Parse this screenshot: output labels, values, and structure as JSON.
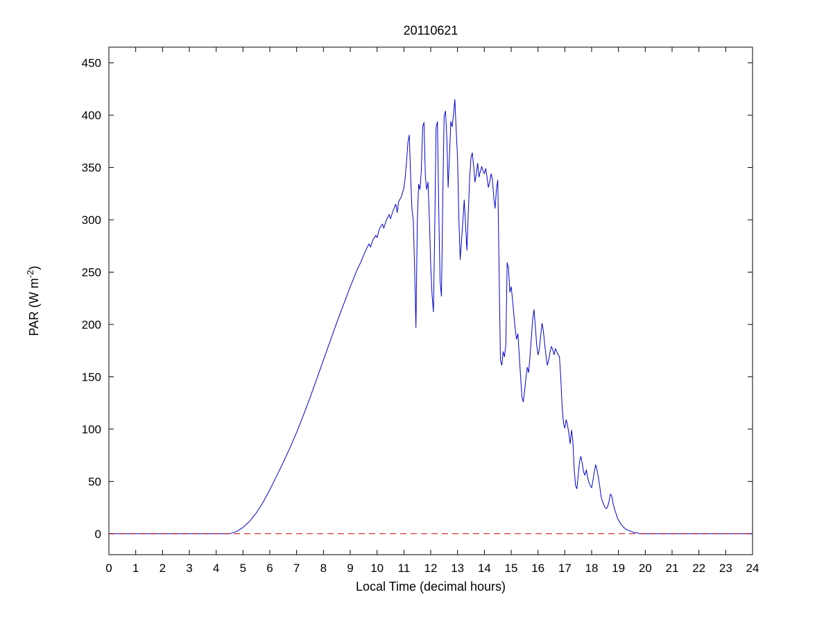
{
  "figure": {
    "background": "#ffffff",
    "axes_color": "#000000"
  },
  "chart_data": {
    "type": "line",
    "title": "20110621",
    "xlabel": "Local Time (decimal hours)",
    "ylabel": "PAR (W m^-2)",
    "ylabel_parts": {
      "main": "PAR (W m",
      "sup": "-2",
      "end": ")"
    },
    "xlim": [
      0,
      24
    ],
    "ylim": [
      -20,
      465
    ],
    "xticks": [
      0,
      1,
      2,
      3,
      4,
      5,
      6,
      7,
      8,
      9,
      10,
      11,
      12,
      13,
      14,
      15,
      16,
      17,
      18,
      19,
      20,
      21,
      22,
      23,
      24
    ],
    "yticks": [
      0,
      50,
      100,
      150,
      200,
      250,
      300,
      350,
      400,
      450
    ],
    "grid": false,
    "legend": "none",
    "series": [
      {
        "name": "par",
        "label": "PAR",
        "color": "#0000cc",
        "style": "solid",
        "points": [
          [
            0,
            0
          ],
          [
            0.5,
            0
          ],
          [
            1,
            0
          ],
          [
            1.5,
            0
          ],
          [
            2,
            0
          ],
          [
            2.5,
            0
          ],
          [
            3,
            0
          ],
          [
            3.5,
            0
          ],
          [
            4,
            0
          ],
          [
            4.3,
            0
          ],
          [
            4.5,
            0
          ],
          [
            4.75,
            2
          ],
          [
            5,
            6
          ],
          [
            5.25,
            12
          ],
          [
            5.5,
            20
          ],
          [
            5.75,
            30
          ],
          [
            6,
            42
          ],
          [
            6.25,
            55
          ],
          [
            6.5,
            68
          ],
          [
            6.75,
            82
          ],
          [
            7,
            97
          ],
          [
            7.25,
            113
          ],
          [
            7.5,
            130
          ],
          [
            7.75,
            148
          ],
          [
            8,
            166
          ],
          [
            8.25,
            184
          ],
          [
            8.5,
            202
          ],
          [
            8.75,
            219
          ],
          [
            9,
            236
          ],
          [
            9.25,
            252
          ],
          [
            9.4,
            260
          ],
          [
            9.5,
            266
          ],
          [
            9.6,
            272
          ],
          [
            9.7,
            277
          ],
          [
            9.75,
            274
          ],
          [
            9.85,
            281
          ],
          [
            9.95,
            285
          ],
          [
            10,
            283
          ],
          [
            10.05,
            288
          ],
          [
            10.1,
            292
          ],
          [
            10.2,
            296
          ],
          [
            10.25,
            292
          ],
          [
            10.35,
            300
          ],
          [
            10.45,
            305
          ],
          [
            10.5,
            301
          ],
          [
            10.6,
            309
          ],
          [
            10.7,
            315
          ],
          [
            10.75,
            307
          ],
          [
            10.8,
            317
          ],
          [
            10.9,
            322
          ],
          [
            11,
            330
          ],
          [
            11.05,
            341
          ],
          [
            11.1,
            356
          ],
          [
            11.15,
            374
          ],
          [
            11.2,
            381
          ],
          [
            11.25,
            342
          ],
          [
            11.3,
            311
          ],
          [
            11.35,
            299
          ],
          [
            11.4,
            254
          ],
          [
            11.45,
            197
          ],
          [
            11.5,
            299
          ],
          [
            11.55,
            334
          ],
          [
            11.6,
            329
          ],
          [
            11.65,
            347
          ],
          [
            11.7,
            389
          ],
          [
            11.75,
            393
          ],
          [
            11.8,
            341
          ],
          [
            11.85,
            329
          ],
          [
            11.9,
            336
          ],
          [
            11.95,
            301
          ],
          [
            12,
            256
          ],
          [
            12.05,
            229
          ],
          [
            12.1,
            212
          ],
          [
            12.15,
            291
          ],
          [
            12.2,
            388
          ],
          [
            12.25,
            394
          ],
          [
            12.3,
            309
          ],
          [
            12.35,
            241
          ],
          [
            12.4,
            227
          ],
          [
            12.45,
            321
          ],
          [
            12.5,
            399
          ],
          [
            12.55,
            404
          ],
          [
            12.6,
            379
          ],
          [
            12.65,
            331
          ],
          [
            12.7,
            361
          ],
          [
            12.75,
            394
          ],
          [
            12.8,
            389
          ],
          [
            12.85,
            401
          ],
          [
            12.9,
            415
          ],
          [
            12.95,
            386
          ],
          [
            13,
            359
          ],
          [
            13.05,
            301
          ],
          [
            13.1,
            262
          ],
          [
            13.15,
            281
          ],
          [
            13.2,
            299
          ],
          [
            13.25,
            319
          ],
          [
            13.3,
            294
          ],
          [
            13.35,
            271
          ],
          [
            13.4,
            306
          ],
          [
            13.45,
            339
          ],
          [
            13.5,
            359
          ],
          [
            13.55,
            364
          ],
          [
            13.6,
            351
          ],
          [
            13.65,
            336
          ],
          [
            13.7,
            344
          ],
          [
            13.75,
            354
          ],
          [
            13.8,
            341
          ],
          [
            13.85,
            346
          ],
          [
            13.9,
            351
          ],
          [
            13.95,
            347
          ],
          [
            14,
            344
          ],
          [
            14.05,
            349
          ],
          [
            14.1,
            341
          ],
          [
            14.15,
            331
          ],
          [
            14.2,
            336
          ],
          [
            14.25,
            344
          ],
          [
            14.3,
            339
          ],
          [
            14.35,
            321
          ],
          [
            14.4,
            311
          ],
          [
            14.45,
            329
          ],
          [
            14.5,
            338
          ],
          [
            14.55,
            251
          ],
          [
            14.6,
            166
          ],
          [
            14.65,
            161
          ],
          [
            14.7,
            174
          ],
          [
            14.75,
            169
          ],
          [
            14.8,
            181
          ],
          [
            14.85,
            259
          ],
          [
            14.9,
            254
          ],
          [
            14.95,
            231
          ],
          [
            15,
            236
          ],
          [
            15.05,
            224
          ],
          [
            15.1,
            209
          ],
          [
            15.15,
            196
          ],
          [
            15.2,
            186
          ],
          [
            15.25,
            191
          ],
          [
            15.3,
            171
          ],
          [
            15.35,
            151
          ],
          [
            15.4,
            131
          ],
          [
            15.45,
            126
          ],
          [
            15.5,
            136
          ],
          [
            15.55,
            149
          ],
          [
            15.6,
            159
          ],
          [
            15.65,
            154
          ],
          [
            15.7,
            169
          ],
          [
            15.75,
            186
          ],
          [
            15.8,
            204
          ],
          [
            15.85,
            214
          ],
          [
            15.9,
            199
          ],
          [
            15.95,
            181
          ],
          [
            16,
            171
          ],
          [
            16.05,
            176
          ],
          [
            16.1,
            189
          ],
          [
            16.15,
            201
          ],
          [
            16.2,
            194
          ],
          [
            16.25,
            181
          ],
          [
            16.3,
            169
          ],
          [
            16.35,
            161
          ],
          [
            16.4,
            166
          ],
          [
            16.45,
            174
          ],
          [
            16.5,
            179
          ],
          [
            16.55,
            176
          ],
          [
            16.6,
            171
          ],
          [
            16.65,
            177
          ],
          [
            16.7,
            174
          ],
          [
            16.75,
            171
          ],
          [
            16.8,
            169
          ],
          [
            16.85,
            149
          ],
          [
            16.9,
            121
          ],
          [
            16.95,
            106
          ],
          [
            17,
            101
          ],
          [
            17.05,
            109
          ],
          [
            17.1,
            104
          ],
          [
            17.15,
            96
          ],
          [
            17.2,
            86
          ],
          [
            17.25,
            99
          ],
          [
            17.3,
            89
          ],
          [
            17.35,
            61
          ],
          [
            17.4,
            46
          ],
          [
            17.45,
            43
          ],
          [
            17.5,
            56
          ],
          [
            17.55,
            69
          ],
          [
            17.6,
            74
          ],
          [
            17.65,
            67
          ],
          [
            17.7,
            59
          ],
          [
            17.75,
            56
          ],
          [
            17.8,
            61
          ],
          [
            17.85,
            54
          ],
          [
            17.9,
            49
          ],
          [
            17.95,
            46
          ],
          [
            18,
            44
          ],
          [
            18.05,
            51
          ],
          [
            18.1,
            59
          ],
          [
            18.15,
            66
          ],
          [
            18.2,
            61
          ],
          [
            18.25,
            54
          ],
          [
            18.3,
            46
          ],
          [
            18.35,
            36
          ],
          [
            18.4,
            31
          ],
          [
            18.45,
            28
          ],
          [
            18.5,
            25
          ],
          [
            18.55,
            24
          ],
          [
            18.6,
            26
          ],
          [
            18.65,
            31
          ],
          [
            18.7,
            38
          ],
          [
            18.75,
            36
          ],
          [
            18.8,
            29
          ],
          [
            18.85,
            24
          ],
          [
            18.9,
            20
          ],
          [
            18.95,
            16
          ],
          [
            19,
            13
          ],
          [
            19.1,
            9
          ],
          [
            19.2,
            6
          ],
          [
            19.3,
            4
          ],
          [
            19.4,
            3
          ],
          [
            19.5,
            2
          ],
          [
            19.6,
            1
          ],
          [
            19.7,
            1
          ],
          [
            19.8,
            0
          ],
          [
            20,
            0
          ],
          [
            20.5,
            0
          ],
          [
            21,
            0
          ],
          [
            21.5,
            0
          ],
          [
            22,
            0
          ],
          [
            22.5,
            0
          ],
          [
            23,
            0
          ],
          [
            23.5,
            0
          ],
          [
            24,
            0
          ]
        ]
      },
      {
        "name": "zero-reference",
        "label": "zero line",
        "color": "#cc0000",
        "style": "dashed",
        "points": [
          [
            0,
            0
          ],
          [
            24,
            0
          ]
        ]
      }
    ]
  }
}
